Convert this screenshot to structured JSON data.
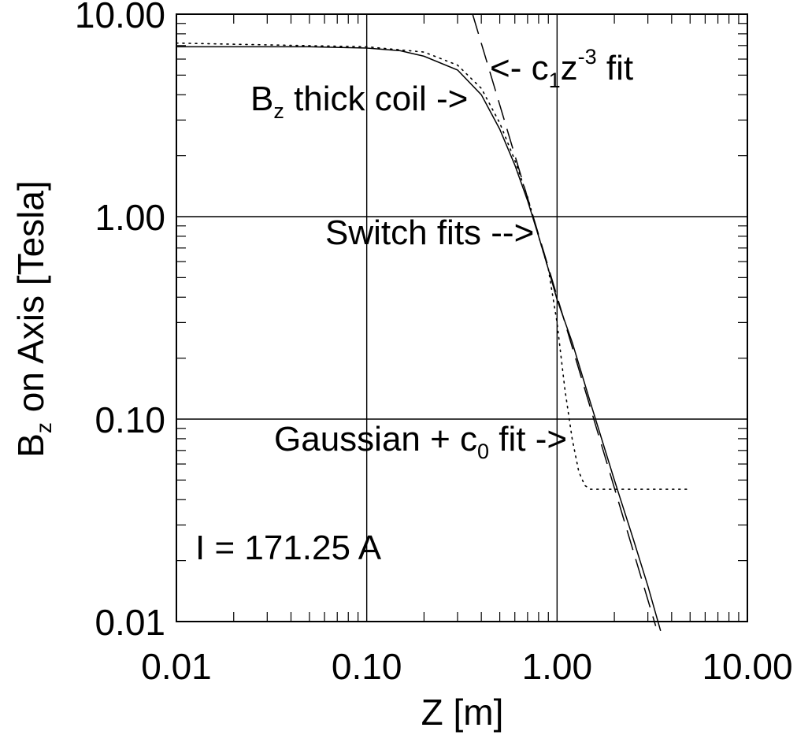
{
  "chart_data": {
    "type": "line",
    "title": "",
    "xlabel": "Z [m]",
    "ylabel": "B",
    "ylabel_sub": "z",
    "ylabel_rest": " on Axis [Tesla]",
    "x_scale": "log",
    "y_scale": "log",
    "xlim": [
      0.01,
      10
    ],
    "ylim": [
      0.01,
      10
    ],
    "grid": true,
    "x_ticks": [
      {
        "value": 0.01,
        "label": "0.01"
      },
      {
        "value": 0.1,
        "label": "0.10"
      },
      {
        "value": 1,
        "label": "1.00"
      },
      {
        "value": 10,
        "label": "10.00"
      }
    ],
    "y_ticks": [
      {
        "value": 0.01,
        "label": "0.01"
      },
      {
        "value": 0.1,
        "label": "0.10"
      },
      {
        "value": 1,
        "label": "1.00"
      },
      {
        "value": 10,
        "label": "10.00"
      }
    ],
    "series": [
      {
        "style": "solid",
        "x": [
          0.01,
          0.05,
          0.1,
          0.15,
          0.2,
          0.3,
          0.4,
          0.5,
          0.6,
          0.7,
          0.8,
          0.9,
          1.0,
          1.2,
          1.5,
          2.0,
          2.5,
          3.0,
          3.5
        ],
        "y": [
          6.9,
          6.9,
          6.8,
          6.6,
          6.2,
          5.3,
          4.0,
          2.7,
          1.8,
          1.2,
          0.8,
          0.55,
          0.39,
          0.24,
          0.12,
          0.05,
          0.026,
          0.015,
          0.009
        ]
      },
      {
        "style": "dotted",
        "x": [
          0.01,
          0.1,
          0.2,
          0.3,
          0.4,
          0.5,
          0.6,
          0.7,
          0.8,
          0.9,
          1.0,
          1.1,
          1.2,
          1.3,
          1.4,
          1.5,
          1.8,
          2.5,
          5.0
        ],
        "y": [
          7.2,
          6.9,
          6.5,
          5.6,
          4.3,
          2.9,
          1.9,
          1.25,
          0.8,
          0.55,
          0.3,
          0.14,
          0.08,
          0.055,
          0.047,
          0.045,
          0.045,
          0.045,
          0.045
        ]
      },
      {
        "style": "dashed",
        "x": [
          0.36,
          3.3
        ],
        "y": [
          10.0,
          0.0095
        ]
      }
    ],
    "annotations": [
      {
        "text_before": "B",
        "sub": "z",
        "text_after": " thick coil ->"
      },
      {
        "text": "<- c",
        "sub": "1",
        "text_mid": "z",
        "sup": "-3",
        "text_after": " fit"
      },
      {
        "text": "Switch fits -->"
      },
      {
        "text_before": "Gaussian + c",
        "sub": "0",
        "text_after": " fit ->"
      },
      {
        "text": "I = 171.25 A"
      }
    ]
  }
}
